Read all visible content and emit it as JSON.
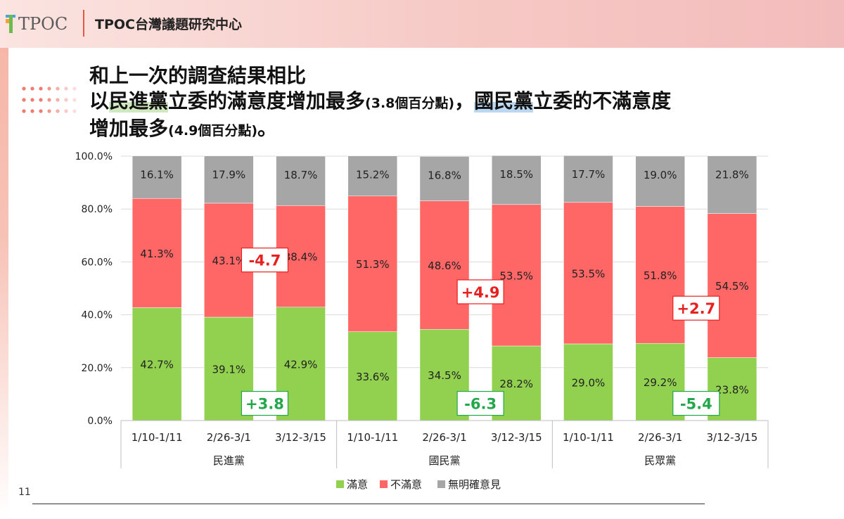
{
  "header": {
    "logo_text": "TPOC",
    "title": "TPOC台灣議題研究中心"
  },
  "headline": {
    "line1": "和上一次的調查結果相比",
    "line2_a": "以",
    "line2_party1": "民進黨",
    "line2_b": "立委的滿意度增加最多",
    "line2_note1": "(3.8個百分點)",
    "line2_c": "，",
    "line2_party2": "國民黨",
    "line2_d": "立委的不滿意度",
    "line3_a": "增加最多",
    "line3_note": "(4.9個百分點)",
    "line3_b": "。"
  },
  "page_number": "11",
  "colors": {
    "satisfied": "#92d050",
    "dissatisfied": "#ff6666",
    "no_opinion": "#a6a6a6",
    "positive_change": "#e8201f",
    "negative_change": "#22a84a"
  },
  "chart_data": {
    "type": "bar",
    "stacked": true,
    "ylim": [
      0,
      100
    ],
    "y_ticks": [
      "0.0%",
      "20.0%",
      "40.0%",
      "60.0%",
      "80.0%",
      "100.0%"
    ],
    "grid": true,
    "legend_position": "bottom",
    "groups": [
      "民進黨",
      "國民黨",
      "民眾黨"
    ],
    "categories": [
      "1/10-1/11",
      "2/26-3/1",
      "3/12-3/15",
      "1/10-1/11",
      "2/26-3/1",
      "3/12-3/15",
      "1/10-1/11",
      "2/26-3/1",
      "3/12-3/15"
    ],
    "series": [
      {
        "name": "滿意",
        "values": [
          42.7,
          39.1,
          42.9,
          33.6,
          34.5,
          28.2,
          29.0,
          29.2,
          23.8
        ],
        "labels": [
          "42.7%",
          "39.1%",
          "42.9%",
          "33.6%",
          "34.5%",
          "28.2%",
          "29.0%",
          "29.2%",
          "23.8%"
        ]
      },
      {
        "name": "不滿意",
        "values": [
          41.3,
          43.1,
          38.4,
          51.3,
          48.6,
          53.5,
          53.5,
          51.8,
          54.5
        ],
        "labels": [
          "41.3%",
          "43.1%",
          "38.4%",
          "51.3%",
          "48.6%",
          "53.5%",
          "53.5%",
          "51.8%",
          "54.5%"
        ]
      },
      {
        "name": "無明確意見",
        "values": [
          16.1,
          17.9,
          18.7,
          15.2,
          16.8,
          18.5,
          17.7,
          19.0,
          21.8
        ],
        "labels": [
          "16.1%",
          "17.9%",
          "18.7%",
          "15.2%",
          "16.8%",
          "18.5%",
          "17.7%",
          "19.0%",
          "21.8%"
        ]
      }
    ],
    "annotations": [
      {
        "text": "-4.7",
        "group": 0,
        "kind": "positive"
      },
      {
        "text": "+3.8",
        "group": 0,
        "kind": "negative"
      },
      {
        "text": "+4.9",
        "group": 1,
        "kind": "positive"
      },
      {
        "text": "-6.3",
        "group": 1,
        "kind": "negative"
      },
      {
        "text": "+2.7",
        "group": 2,
        "kind": "positive"
      },
      {
        "text": "-5.4",
        "group": 2,
        "kind": "negative"
      }
    ]
  }
}
